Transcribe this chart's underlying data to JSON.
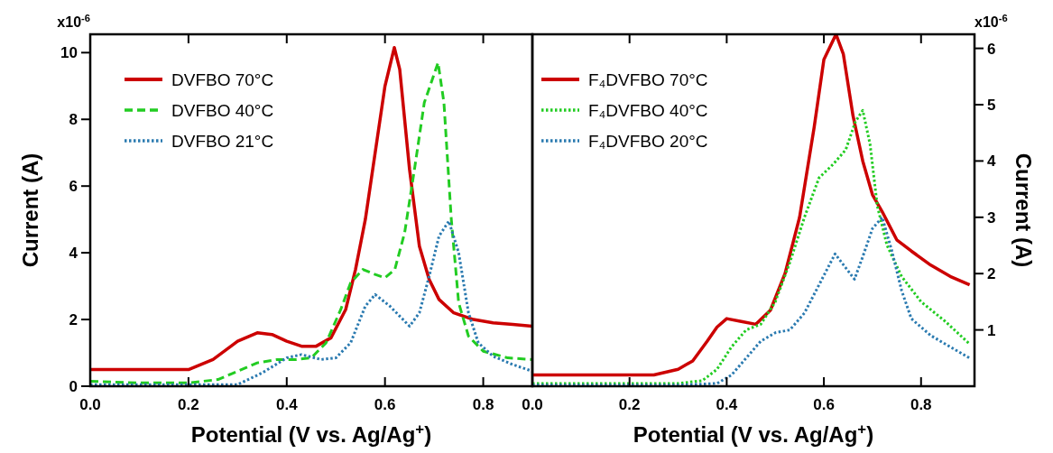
{
  "chart_data": [
    {
      "type": "line",
      "xlabel": "Potential (V vs. Ag/Ag$^{+}$)",
      "ylabel": "Current (A)",
      "annotations": [
        "x10$^{-6}$"
      ],
      "xlim": [
        0,
        0.9
      ],
      "ylim": [
        0,
        10.55
      ],
      "xticks": [
        {
          "value": 0,
          "label": "0.0"
        },
        0.2,
        0.4,
        0.6,
        0.8
      ],
      "yticks": [
        0,
        2,
        4,
        6,
        8,
        10
      ],
      "legend": "top left",
      "grid": false,
      "marker": "none",
      "series": [
        {
          "name": "DVFBO 70°C",
          "color": "#cc0000",
          "line_style": "solid",
          "x": [
            0,
            0.05,
            0.1,
            0.15,
            0.2,
            0.25,
            0.3,
            0.34,
            0.37,
            0.4,
            0.43,
            0.46,
            0.49,
            0.52,
            0.54,
            0.56,
            0.58,
            0.6,
            0.619,
            0.63,
            0.65,
            0.67,
            0.69,
            0.71,
            0.74,
            0.78,
            0.82,
            0.86,
            0.9
          ],
          "values": [
            0.5,
            0.5,
            0.5,
            0.5,
            0.5,
            0.8,
            1.35,
            1.6,
            1.55,
            1.35,
            1.2,
            1.2,
            1.45,
            2.3,
            3.5,
            5,
            7,
            9,
            10.15,
            9.5,
            6.5,
            4.2,
            3.2,
            2.6,
            2.2,
            2.0,
            1.9,
            1.85,
            1.8
          ]
        },
        {
          "name": "DVFBO 40°C",
          "color": "#22cc22",
          "line_style": "dashed",
          "x": [
            0,
            0.1,
            0.2,
            0.26,
            0.3,
            0.34,
            0.38,
            0.42,
            0.45,
            0.48,
            0.51,
            0.53,
            0.555,
            0.58,
            0.6,
            0.62,
            0.64,
            0.66,
            0.68,
            0.708,
            0.72,
            0.735,
            0.75,
            0.77,
            0.8,
            0.85,
            0.9
          ],
          "values": [
            0.15,
            0.1,
            0.1,
            0.2,
            0.45,
            0.7,
            0.8,
            0.8,
            0.85,
            1.3,
            2.3,
            3.1,
            3.5,
            3.35,
            3.25,
            3.5,
            4.6,
            6.5,
            8.5,
            9.7,
            8.5,
            5,
            2.5,
            1.5,
            1.05,
            0.85,
            0.8
          ]
        },
        {
          "name": "DVFBO 21°C",
          "color": "#2a7ab0",
          "line_style": "dotted",
          "x": [
            0,
            0.2,
            0.3,
            0.35,
            0.4,
            0.43,
            0.47,
            0.5,
            0.53,
            0.56,
            0.58,
            0.61,
            0.65,
            0.67,
            0.69,
            0.71,
            0.73,
            0.75,
            0.77,
            0.79,
            0.82,
            0.86,
            0.9
          ],
          "values": [
            0.05,
            0.05,
            0.05,
            0.4,
            0.85,
            0.95,
            0.8,
            0.85,
            1.3,
            2.4,
            2.75,
            2.4,
            1.8,
            2.2,
            3.3,
            4.5,
            4.95,
            4,
            2.2,
            1.3,
            0.9,
            0.65,
            0.45
          ]
        }
      ]
    },
    {
      "type": "line",
      "xlabel": "Potential (V vs. Ag/Ag$^{+}$)",
      "y2label": "Current (A)",
      "annotations": [
        "x10$^{-6}$"
      ],
      "xlim": [
        0,
        0.91
      ],
      "y2lim": [
        0,
        6.25
      ],
      "xticks": [
        {
          "value": 0,
          "label": "0.0"
        },
        0.2,
        0.4,
        0.6,
        0.8
      ],
      "y2ticks": [
        1,
        2,
        3,
        4,
        5,
        6
      ],
      "legend": "top left",
      "grid": false,
      "marker": "none",
      "series": [
        {
          "name": "F₄DVFBO 70°C",
          "color": "#cc0000",
          "line_style": "solid",
          "axis": "y2",
          "x": [
            0,
            0.1,
            0.2,
            0.25,
            0.3,
            0.33,
            0.36,
            0.38,
            0.4,
            0.43,
            0.46,
            0.49,
            0.52,
            0.55,
            0.58,
            0.6,
            0.625,
            0.64,
            0.66,
            0.68,
            0.7,
            0.72,
            0.75,
            0.78,
            0.82,
            0.86,
            0.9
          ],
          "values": [
            0.2,
            0.2,
            0.2,
            0.2,
            0.3,
            0.45,
            0.8,
            1.05,
            1.2,
            1.15,
            1.1,
            1.35,
            2.0,
            3.0,
            4.6,
            5.8,
            6.25,
            5.9,
            4.8,
            4.0,
            3.4,
            3.1,
            2.6,
            2.4,
            2.15,
            1.95,
            1.8
          ]
        },
        {
          "name": "F₄DVFBO 40°C",
          "color": "#22cc22",
          "line_style": "dotted",
          "axis": "y2",
          "x": [
            0,
            0.2,
            0.3,
            0.35,
            0.38,
            0.41,
            0.44,
            0.47,
            0.5,
            0.53,
            0.56,
            0.59,
            0.62,
            0.645,
            0.665,
            0.68,
            0.695,
            0.71,
            0.73,
            0.76,
            0.8,
            0.85,
            0.9
          ],
          "values": [
            0.05,
            0.05,
            0.05,
            0.1,
            0.3,
            0.7,
            1.0,
            1.1,
            1.5,
            2.2,
            3.0,
            3.7,
            3.95,
            4.2,
            4.7,
            4.9,
            4.3,
            3.2,
            2.5,
            1.95,
            1.5,
            1.15,
            0.75
          ]
        },
        {
          "name": "F₄DVFBO 20°C",
          "color": "#2a7ab0",
          "line_style": "dotted",
          "axis": "y2",
          "x": [
            0,
            0.3,
            0.38,
            0.41,
            0.44,
            0.47,
            0.5,
            0.53,
            0.56,
            0.59,
            0.623,
            0.663,
            0.68,
            0.7,
            0.72,
            0.74,
            0.76,
            0.78,
            0.82,
            0.86,
            0.9
          ],
          "values": [
            0.02,
            0.02,
            0.05,
            0.2,
            0.5,
            0.8,
            0.95,
            1.0,
            1.3,
            1.8,
            2.35,
            1.9,
            2.3,
            2.8,
            3.0,
            2.4,
            1.7,
            1.2,
            0.9,
            0.7,
            0.5
          ]
        }
      ]
    }
  ]
}
